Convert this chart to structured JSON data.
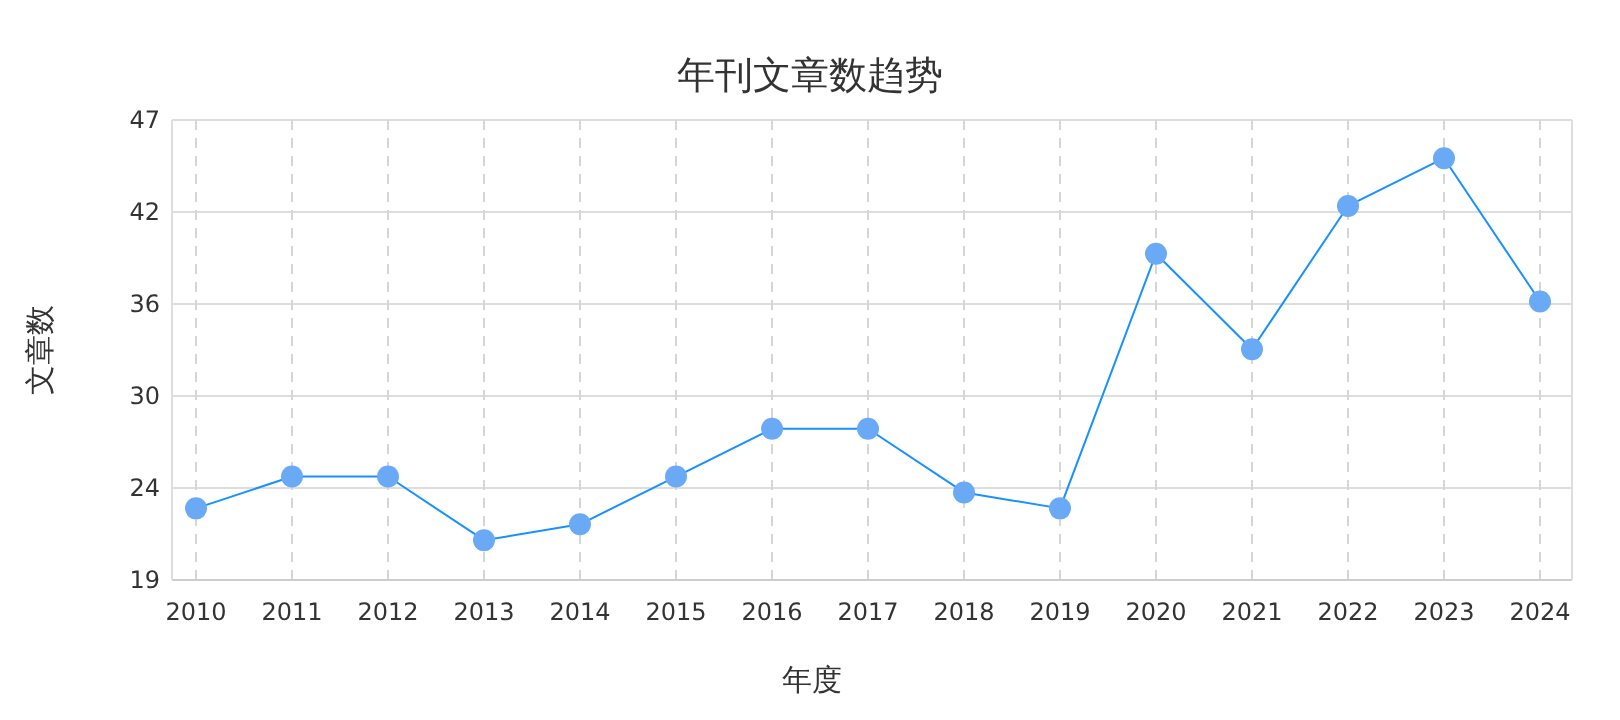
{
  "chart_data": {
    "type": "line",
    "title": "年刊文章数趋势",
    "xlabel": "年度",
    "ylabel": "文章数",
    "categories": [
      "2010",
      "2011",
      "2012",
      "2013",
      "2014",
      "2015",
      "2016",
      "2017",
      "2018",
      "2019",
      "2020",
      "2021",
      "2022",
      "2023",
      "2024"
    ],
    "series": [
      {
        "color": "#1890ff",
        "values": [
          23,
          25,
          25,
          21,
          22,
          25,
          28,
          28,
          24,
          23,
          39,
          33,
          42,
          45,
          36
        ]
      }
    ],
    "ylim": [
      18.5,
      47.4
    ],
    "yticks": [
      {
        "value": 18.5,
        "label": "19"
      },
      {
        "value": 24.28,
        "label": "24"
      },
      {
        "value": 30.06,
        "label": "30"
      },
      {
        "value": 35.84,
        "label": "36"
      },
      {
        "value": 41.62,
        "label": "42"
      },
      {
        "value": 47.4,
        "label": "47"
      }
    ],
    "grid": true,
    "marker": "circle",
    "line_style": "solid"
  }
}
